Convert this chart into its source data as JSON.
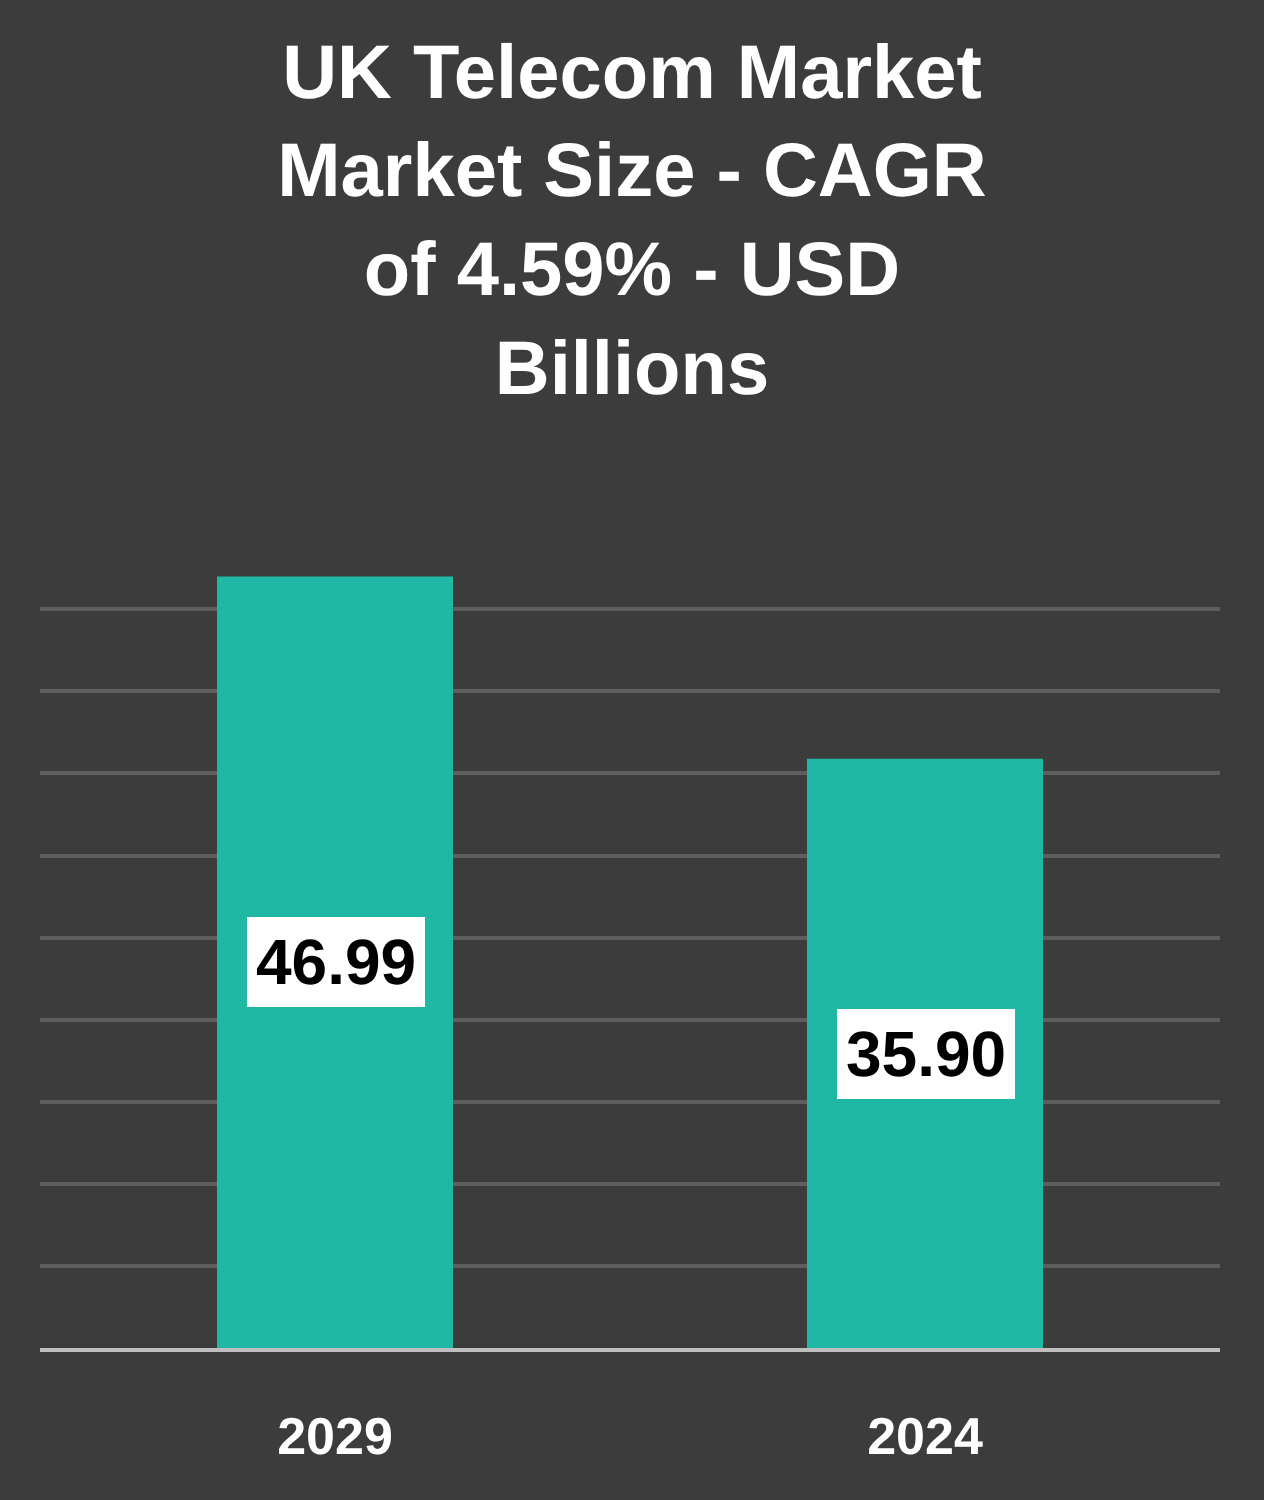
{
  "chart_data": {
    "type": "bar",
    "title": "UK Telecom Market\nMarket Size - CAGR\nof 4.59% - USD\nBillions",
    "categories": [
      "2029",
      "2024"
    ],
    "values": [
      46.99,
      35.9
    ],
    "value_labels": [
      "46.99",
      "35.90"
    ],
    "color": "#1fb8a5",
    "grid": "y",
    "tick_labels": "x"
  }
}
